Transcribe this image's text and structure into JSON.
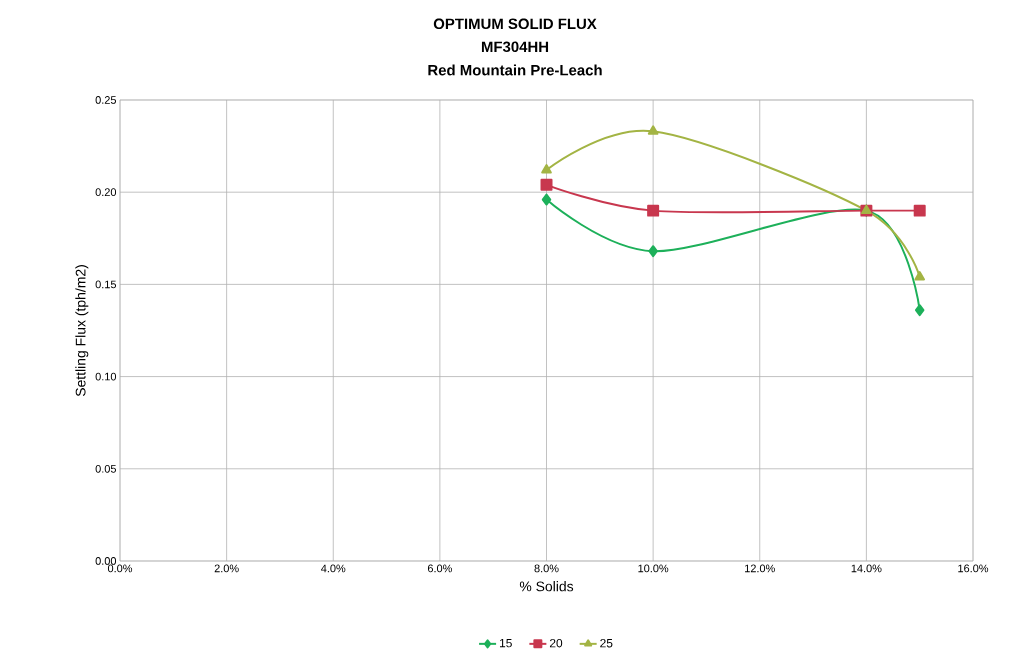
{
  "chart_data": {
    "type": "line",
    "title": "OPTIMUM SOLID FLUX",
    "subtitle": "MF304HH",
    "annotations": [
      "Red Mountain Pre-Leach"
    ],
    "xlabel": "% Solids",
    "ylabel": "Settling Flux  (tph/m2)",
    "x": [
      0.08,
      0.1,
      0.14,
      0.15
    ],
    "series": [
      {
        "name": "15",
        "color": "#1db05a",
        "marker": "diamond",
        "values": [
          0.196,
          0.168,
          0.19,
          0.136
        ]
      },
      {
        "name": "20",
        "color": "#c8374e",
        "marker": "square",
        "values": [
          0.204,
          0.19,
          0.19,
          0.19
        ]
      },
      {
        "name": "25",
        "color": "#a3b444",
        "marker": "triangle",
        "values": [
          0.212,
          0.233,
          0.19,
          0.154
        ]
      }
    ],
    "xlim": [
      0,
      0.16
    ],
    "xticks": [
      {
        "value": 0,
        "label": "0.0%"
      },
      {
        "value": 0.02,
        "label": "2.0%"
      },
      {
        "value": 0.04,
        "label": "4.0%"
      },
      {
        "value": 0.06,
        "label": "6.0%"
      },
      {
        "value": 0.08,
        "label": "8.0%"
      },
      {
        "value": 0.1,
        "label": "10.0%"
      },
      {
        "value": 0.12,
        "label": "12.0%"
      },
      {
        "value": 0.14,
        "label": "14.0%"
      },
      {
        "value": 0.16,
        "label": "16.0%"
      }
    ],
    "ylim": [
      0,
      0.25
    ],
    "yticks": [
      {
        "value": 0,
        "label": "0.00"
      },
      {
        "value": 0.05,
        "label": "0.05"
      },
      {
        "value": 0.1,
        "label": "0.10"
      },
      {
        "value": 0.15,
        "label": "0.15"
      },
      {
        "value": 0.2,
        "label": "0.20"
      },
      {
        "value": 0.25,
        "label": "0.25"
      }
    ],
    "grid": true,
    "legend": "bottom",
    "line_style": "solid"
  }
}
